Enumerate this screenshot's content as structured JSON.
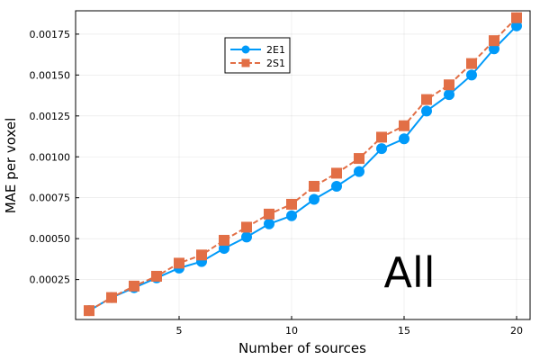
{
  "chart_data": {
    "type": "line",
    "xlabel": "Number of sources",
    "ylabel": "MAE per voxel",
    "xlim": [
      0.4,
      20.6
    ],
    "ylim": [
      5.8e-06,
      0.0018925
    ],
    "xticks": [
      5,
      10,
      15,
      20
    ],
    "yticks": [
      0.00025,
      0.0005,
      0.00075,
      0.001,
      0.00125,
      0.0015,
      0.00175
    ],
    "ytick_labels": [
      "0.00025",
      "0.00050",
      "0.00075",
      "0.00100",
      "0.00125",
      "0.00150",
      "0.00175"
    ],
    "grid": true,
    "legend_position": "top-center",
    "annotation": "All",
    "x": [
      1,
      2,
      3,
      4,
      5,
      6,
      7,
      8,
      9,
      10,
      11,
      12,
      13,
      14,
      15,
      16,
      17,
      18,
      19,
      20
    ],
    "series": [
      {
        "name": "2E1",
        "color": "#009af9",
        "marker": "circle",
        "line": "solid",
        "values": [
          6e-05,
          0.00014,
          0.0002,
          0.00026,
          0.00032,
          0.00036,
          0.00044,
          0.00051,
          0.00059,
          0.00064,
          0.00074,
          0.00082,
          0.00091,
          0.00105,
          0.00111,
          0.00128,
          0.00138,
          0.0015,
          0.00166,
          0.0018
        ]
      },
      {
        "name": "2S1",
        "color": "#e26f46",
        "marker": "square",
        "line": "dashed",
        "values": [
          6e-05,
          0.00014,
          0.00021,
          0.00027,
          0.00035,
          0.0004,
          0.00049,
          0.00057,
          0.00065,
          0.00071,
          0.00082,
          0.0009,
          0.00099,
          0.00112,
          0.00119,
          0.00135,
          0.00144,
          0.00157,
          0.00171,
          0.00185
        ]
      }
    ]
  }
}
